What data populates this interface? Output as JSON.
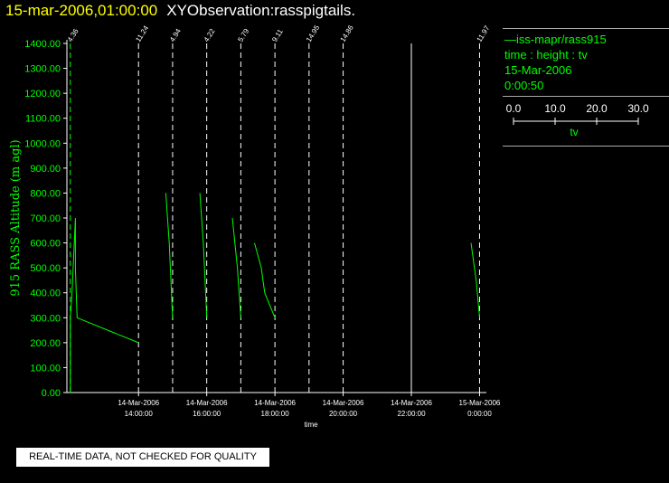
{
  "header": {
    "date": "15-mar-2006,01:00:00",
    "title": "XYObservation:rasspigtails."
  },
  "legend": {
    "line_label": "—iss-mapr/rass915",
    "axes_desc": "time : height : tv",
    "date": "15-Mar-2006",
    "time": "0:00:50",
    "scale_ticks": [
      "0.0",
      "10.0",
      "20.0",
      "30.0"
    ],
    "scale_label": "tv"
  },
  "footer": {
    "warning": "REAL-TIME DATA, NOT CHECKED FOR QUALITY"
  },
  "colors": {
    "background": "#000000",
    "axis": "#ffffff",
    "data": "#00ff00",
    "title_date": "#ffff00"
  },
  "chart_data": {
    "type": "line",
    "ylabel": "915 RASS Altitude (m agl)",
    "xlabel": "time",
    "ylim": [
      0,
      1400
    ],
    "yticks": [
      "0.00",
      "100.00",
      "200.00",
      "300.00",
      "400.00",
      "500.00",
      "600.00",
      "700.00",
      "800.00",
      "900.00",
      "1000.00",
      "1100.00",
      "1200.00",
      "1300.00",
      "1400.00"
    ],
    "xlim": [
      11.9,
      24.2
    ],
    "xticks": [
      {
        "x": 14,
        "label1": "14-Mar-2006",
        "label2": "14:00:00"
      },
      {
        "x": 16,
        "label1": "14-Mar-2006",
        "label2": "16:00:00"
      },
      {
        "x": 18,
        "label1": "14-Mar-2006",
        "label2": "18:00:00"
      },
      {
        "x": 20,
        "label1": "14-Mar-2006",
        "label2": "20:00:00"
      },
      {
        "x": 22,
        "label1": "14-Mar-2006",
        "label2": "22:00:00"
      },
      {
        "x": 24,
        "label1": "15-Mar-2006",
        "label2": "0:00:00"
      }
    ],
    "profiles": [
      {
        "t": 12,
        "label": "4.36"
      },
      {
        "t": 14,
        "label": "11.24"
      },
      {
        "t": 15,
        "label": "4.94"
      },
      {
        "t": 16,
        "label": "4.22"
      },
      {
        "t": 17,
        "label": "5.79"
      },
      {
        "t": 18,
        "label": "9.11"
      },
      {
        "t": 19,
        "label": "14.95"
      },
      {
        "t": 20,
        "label": "14.86"
      },
      {
        "t": 22,
        "label": ""
      },
      {
        "t": 24,
        "label": "11.97"
      }
    ],
    "traces": [
      [
        [
          12.0,
          0
        ],
        [
          12.0,
          100
        ],
        [
          12.0,
          300
        ],
        [
          12.05,
          400
        ],
        [
          12.15,
          700
        ],
        [
          12.15,
          500
        ],
        [
          12.2,
          300
        ],
        [
          14.0,
          200
        ]
      ],
      [
        [
          14.8,
          800
        ],
        [
          14.9,
          600
        ],
        [
          15.0,
          300
        ]
      ],
      [
        [
          15.8,
          800
        ],
        [
          15.9,
          600
        ],
        [
          16.0,
          300
        ]
      ],
      [
        [
          16.75,
          700
        ],
        [
          16.9,
          500
        ],
        [
          17.0,
          300
        ]
      ],
      [
        [
          17.4,
          600
        ],
        [
          17.6,
          500
        ],
        [
          17.7,
          400
        ],
        [
          18.0,
          300
        ]
      ],
      [
        [
          23.75,
          600
        ],
        [
          23.9,
          450
        ],
        [
          24.0,
          300
        ]
      ]
    ],
    "scale": {
      "min": 0,
      "max": 30,
      "units": "tv"
    }
  }
}
